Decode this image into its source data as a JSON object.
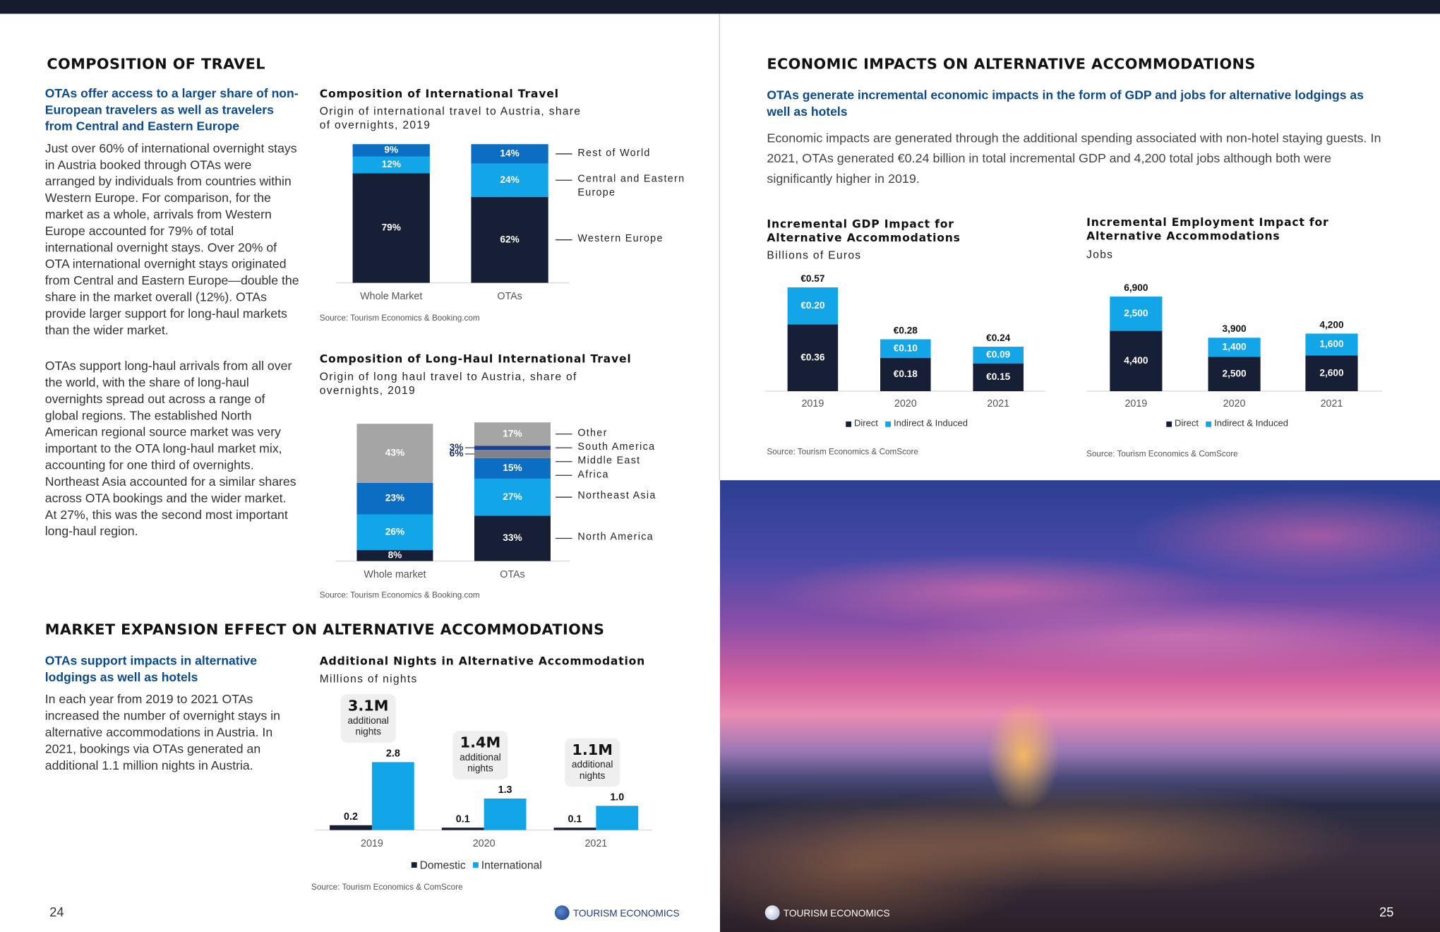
{
  "composition": {
    "heading": "COMPOSITION OF TRAVEL",
    "lead": "OTAs offer access to a larger share of non-European travelers as well as travelers from Central and Eastern Europe",
    "paragraphs": [
      "Just over 60% of international overnight stays in Austria booked through OTAs were arranged by individuals from countries within Western Europe. For comparison, for the market as a whole, arrivals from Western Europe accounted for 79% of total international overnight stays. Over 20% of OTA international overnight stays originated from Central and Eastern Europe—double the share in the market overall (12%).  OTAs provide larger support for long-haul markets than the wider market.",
      "OTAs support long-haul arrivals from all over the world, with the share of long-haul overnights spread out across a range of global regions. The established North American regional source market was very important to the OTA long-haul market mix, accounting for one third of overnights. Northeast Asia accounted for a similar shares across OTA bookings and the wider market. At 27%, this was the second most important long-haul region."
    ]
  },
  "market_expansion": {
    "heading": "MARKET EXPANSION EFFECT ON ALTERNATIVE ACCOMMODATIONS",
    "lead": "OTAs support impacts in alternative lodgings as well as hotels",
    "paragraphs": [
      "In each year from 2019 to 2021 OTAs increased the number of overnight stays in alternative accommodations in Austria. In 2021, bookings via OTAs generated an additional 1.1 million nights in Austria."
    ]
  },
  "economic_impacts": {
    "heading": "ECONOMIC IMPACTS ON ALTERNATIVE ACCOMMODATIONS",
    "lead": "OTAs generate incremental economic impacts in the form of GDP and jobs for alternative lodgings as well as hotels",
    "paragraphs": [
      "Economic impacts are generated through the additional spending associated with non-hotel staying guests. In 2021, OTAs generated €0.24 billion in total incremental GDP and 4,200 total jobs although both were significantly higher in 2019."
    ]
  },
  "footer": {
    "left_page_number": "24",
    "right_page_number": "25",
    "logo": "TOURISM ECONOMICS"
  },
  "chart_data": [
    {
      "type": "stacked_bar",
      "title": "Composition of International Travel",
      "subtitle": "Origin of international travel to Austria, share of overnights, 2019",
      "source": "Source: Tourism Economics & Booking.com",
      "legend": "right",
      "categories": [
        "Whole Market",
        "OTAs"
      ],
      "series": [
        {
          "name": "Western Europe",
          "color": "#161f35",
          "values": [
            79,
            62
          ],
          "value_labels": [
            "79%",
            "62%"
          ]
        },
        {
          "name": "Central and Eastern Europe",
          "color": "#12a5e8",
          "values": [
            12,
            24
          ],
          "value_labels": [
            "12%",
            "24%"
          ]
        },
        {
          "name": "Rest of World",
          "color": "#0b6ec2",
          "values": [
            9,
            14
          ],
          "value_labels": [
            "9%",
            "14%"
          ]
        }
      ]
    },
    {
      "type": "stacked_bar",
      "title": "Composition of Long-Haul International Travel",
      "subtitle": "Origin of long haul travel to Austria, share of overnights, 2019",
      "source": "Source: Tourism Economics & Booking.com",
      "legend": "right",
      "categories": [
        "Whole market",
        "OTAs"
      ],
      "series": [
        {
          "name": "North America",
          "color": "#161f35",
          "values": [
            8,
            33
          ],
          "value_labels": [
            "8%",
            "33%"
          ]
        },
        {
          "name": "Northeast Asia",
          "color": "#12a5e8",
          "values": [
            26,
            27
          ],
          "value_labels": [
            "26%",
            "27%"
          ]
        },
        {
          "name": "Africa",
          "color": "#0b6ec2",
          "values": [
            23,
            15
          ],
          "value_labels": [
            "23%",
            "15%"
          ]
        },
        {
          "name": "Middle East",
          "color": "#7f8389",
          "values": [
            null,
            6
          ],
          "value_labels": [
            null,
            "6%"
          ]
        },
        {
          "name": "South America",
          "color": "#1c3f8f",
          "values": [
            null,
            3
          ],
          "value_labels": [
            null,
            "3%"
          ]
        },
        {
          "name": "Other",
          "color": "#a5a5a5",
          "values": [
            43,
            17
          ],
          "value_labels": [
            "43%",
            "17%"
          ]
        }
      ]
    },
    {
      "type": "bar",
      "title": "Additional Nights in Alternative Accommodation",
      "subtitle": "Millions of nights",
      "source": "Source: Tourism Economics & ComScore",
      "legend": "bottom",
      "categories": [
        "2019",
        "2020",
        "2021"
      ],
      "series": [
        {
          "name": "Domestic",
          "color": "#161f35",
          "values": [
            0.2,
            0.1,
            0.1
          ]
        },
        {
          "name": "International",
          "color": "#12a5e8",
          "values": [
            2.8,
            1.3,
            1.0
          ],
          "value_labels": [
            "2.8",
            "1.3",
            "1.0"
          ]
        }
      ],
      "annotations": [
        {
          "value": "3.1M",
          "text": "additional nights"
        },
        {
          "value": "1.4M",
          "text": "additional nights"
        },
        {
          "value": "1.1M",
          "text": "additional nights"
        }
      ]
    },
    {
      "type": "stacked_bar",
      "title": "Incremental GDP Impact for Alternative Accommodations",
      "subtitle": "Billions of Euros",
      "source": "Source: Tourism Economics & ComScore",
      "legend": "bottom",
      "categories": [
        "2019",
        "2020",
        "2021"
      ],
      "series": [
        {
          "name": "Direct",
          "color": "#161f35",
          "values": [
            0.36,
            0.18,
            0.15
          ],
          "value_labels": [
            "€0.36",
            "€0.18",
            "€0.15"
          ]
        },
        {
          "name": "Indirect & Induced",
          "color": "#12a5e8",
          "values": [
            0.2,
            0.1,
            0.09
          ],
          "value_labels": [
            "€0.20",
            "€0.10",
            "€0.09"
          ]
        }
      ],
      "total_labels": [
        "€0.57",
        "€0.28",
        "€0.24"
      ]
    },
    {
      "type": "stacked_bar",
      "title": "Incremental Employment Impact for Alternative Accommodations",
      "subtitle": "Jobs",
      "source": "Source: Tourism Economics & ComScore",
      "legend": "bottom",
      "categories": [
        "2019",
        "2020",
        "2021"
      ],
      "series": [
        {
          "name": "Direct",
          "color": "#161f35",
          "values": [
            4400,
            2500,
            2600
          ],
          "value_labels": [
            "4,400",
            "2,500",
            "2,600"
          ]
        },
        {
          "name": "Indirect & Induced",
          "color": "#12a5e8",
          "values": [
            2500,
            1400,
            1600
          ],
          "value_labels": [
            "2,500",
            "1,400",
            "1,600"
          ]
        }
      ],
      "total_labels": [
        "6,900",
        "3,900",
        "4,200"
      ]
    }
  ]
}
